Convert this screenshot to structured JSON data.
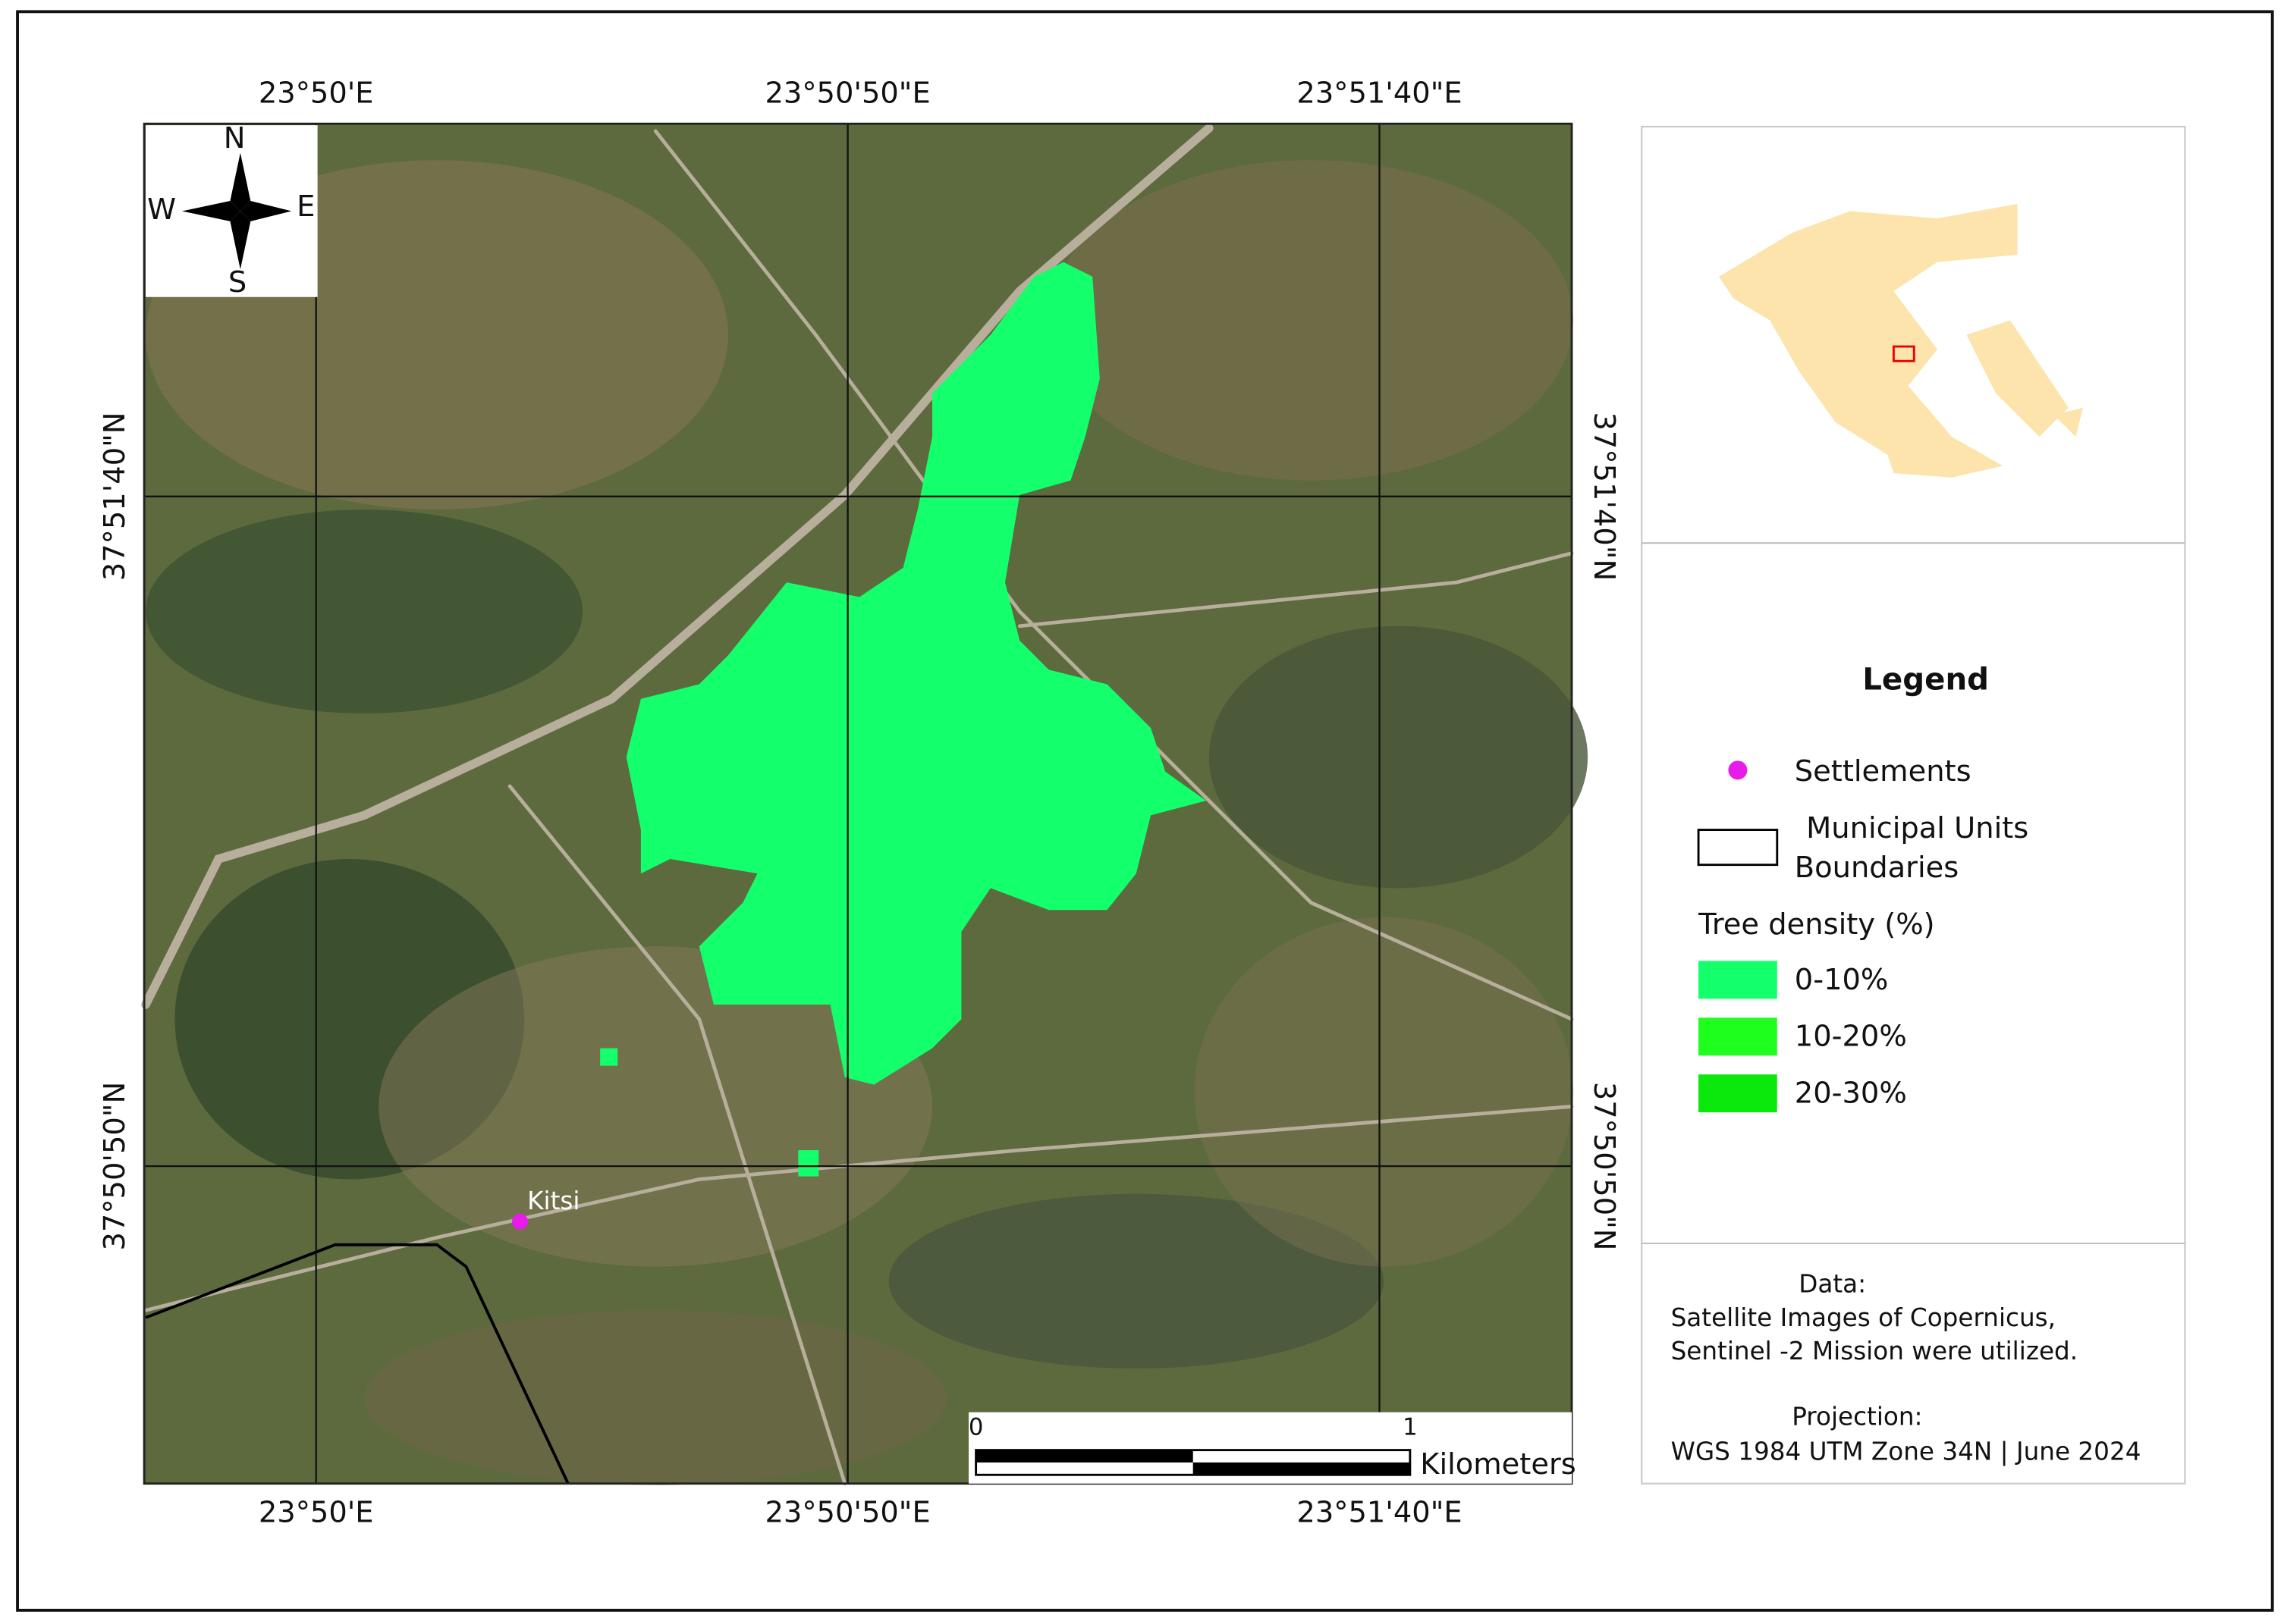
{
  "map": {
    "top_labels": [
      "23°50'E",
      "23°50'50\"E",
      "23°51'40\"E"
    ],
    "bottom_labels": [
      "23°50'E",
      "23°50'50\"E",
      "23°51'40\"E"
    ],
    "left_labels": [
      "37°51'40\"N",
      "37°50'50\"N"
    ],
    "right_labels": [
      "37°51'40\"N",
      "37°50'50\"N"
    ],
    "compass": {
      "n": "N",
      "s": "S",
      "e": "E",
      "w": "W"
    },
    "place": "Kitsi",
    "scale_bar": {
      "labels": [
        "0",
        "1"
      ],
      "unit": "Kilometers"
    }
  },
  "legend": {
    "title": "Legend",
    "settlements": "Settlements",
    "boundaries": [
      "Municipal Units",
      "Boundaries"
    ],
    "density_title": "Tree density (%)",
    "classes": [
      {
        "label": "0-10%",
        "color": "#14ff6c"
      },
      {
        "label": "10-20%",
        "color": "#1eff1e"
      },
      {
        "label": "20-30%",
        "color": "#0be80b"
      }
    ]
  },
  "notes": {
    "data_title": "Data:",
    "data_lines": [
      "Satellite Images of Copernicus,",
      "Sentinel -2 Mission were utilized."
    ],
    "projection_title": "Projection:",
    "projection_line": "WGS 1984 UTM Zone 34N |  June 2024"
  }
}
